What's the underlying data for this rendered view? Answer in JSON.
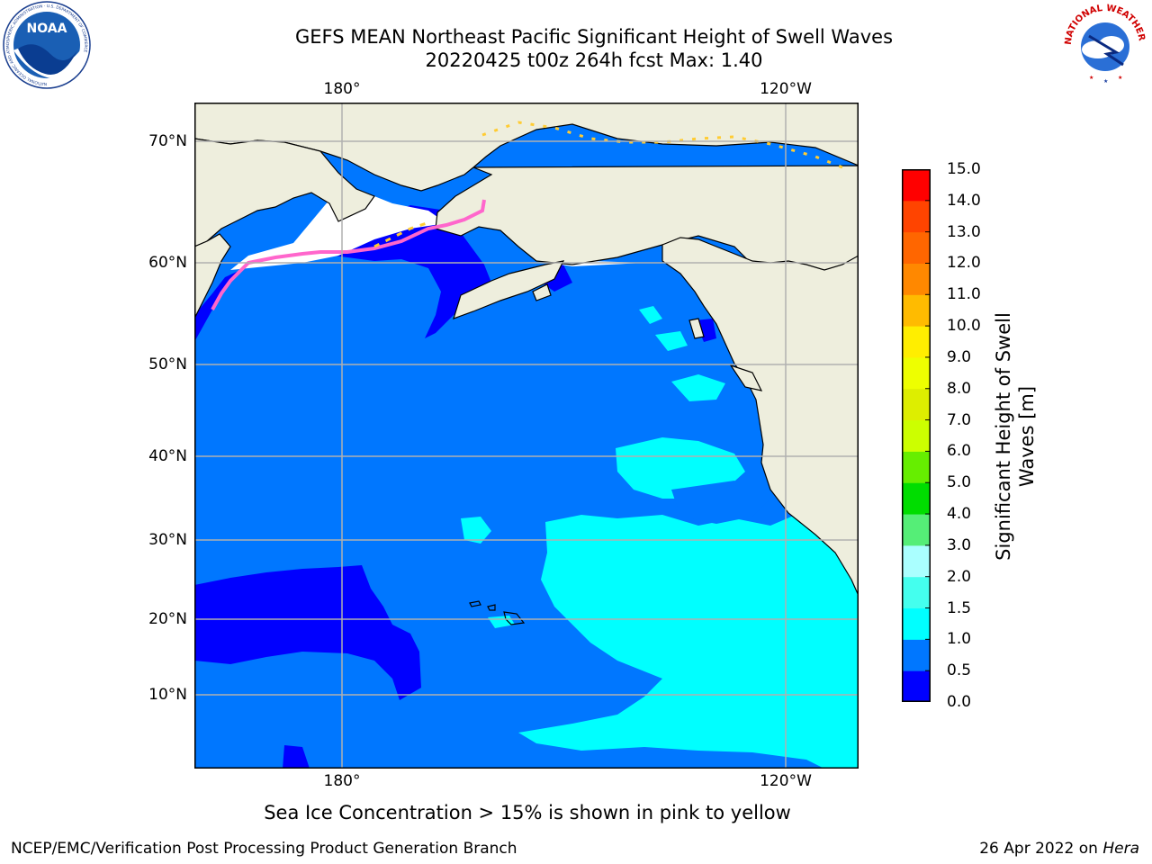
{
  "header": {
    "title_line1": "GEFS MEAN Northeast Pacific Significant Height of Swell Waves",
    "title_line2": "20220425 t00z 264h fcst   Max: 1.40"
  },
  "map": {
    "lon_labels_top": [
      "180°",
      "120°W"
    ],
    "lon_labels_bottom": [
      "180°",
      "120°W"
    ],
    "lat_labels": [
      "70°N",
      "60°N",
      "50°N",
      "40°N",
      "30°N",
      "20°N",
      "10°N"
    ],
    "colors": {
      "land": "#eeeedd",
      "ocean_0_0.5": "#0000ff",
      "ocean_0.5_1.0": "#0077ff",
      "ocean_1.0_1.5": "#00ffff",
      "sea_ice_high": "#ff66cc",
      "sea_ice_low": "#ffcc33",
      "grid": "#b0b0b0"
    }
  },
  "colorbar": {
    "label": "Significant Height of Swell Waves [m]",
    "ticks": [
      "15.0",
      "14.0",
      "13.0",
      "12.0",
      "11.0",
      "10.0",
      "9.0",
      "8.0",
      "7.0",
      "6.0",
      "5.0",
      "4.0",
      "3.0",
      "2.0",
      "1.5",
      "1.0",
      "0.5",
      "0.0"
    ],
    "bands": [
      {
        "from": 0.0,
        "to": 0.5,
        "color": "#0000ff"
      },
      {
        "from": 0.5,
        "to": 1.0,
        "color": "#0077ff"
      },
      {
        "from": 1.0,
        "to": 1.5,
        "color": "#00ffff"
      },
      {
        "from": 1.5,
        "to": 2.0,
        "color": "#44ffee"
      },
      {
        "from": 2.0,
        "to": 3.0,
        "color": "#aaffff"
      },
      {
        "from": 3.0,
        "to": 4.0,
        "color": "#55ee77"
      },
      {
        "from": 4.0,
        "to": 5.0,
        "color": "#00dd00"
      },
      {
        "from": 5.0,
        "to": 6.0,
        "color": "#66ee00"
      },
      {
        "from": 6.0,
        "to": 7.0,
        "color": "#ccff00"
      },
      {
        "from": 7.0,
        "to": 8.0,
        "color": "#ddee00"
      },
      {
        "from": 8.0,
        "to": 9.0,
        "color": "#eeff00"
      },
      {
        "from": 9.0,
        "to": 10.0,
        "color": "#ffee00"
      },
      {
        "from": 10.0,
        "to": 11.0,
        "color": "#ffbb00"
      },
      {
        "from": 11.0,
        "to": 12.0,
        "color": "#ff8800"
      },
      {
        "from": 12.0,
        "to": 13.0,
        "color": "#ff6600"
      },
      {
        "from": 13.0,
        "to": 14.0,
        "color": "#ff4400"
      },
      {
        "from": 14.0,
        "to": 15.0,
        "color": "#ff0000"
      }
    ]
  },
  "footnote": "Sea Ice Concentration > 15% is shown in pink to yellow",
  "footer": {
    "left": "NCEP/EMC/Verification Post Processing Product Generation Branch",
    "right_prefix": "26 Apr 2022 on ",
    "right_host": "Hera"
  },
  "logos": {
    "noaa_text": "NOAA",
    "noaa_ring_text": "NATIONAL OCEANIC AND ATMOSPHERIC ADMINISTRATION · U.S. DEPARTMENT OF COMMERCE",
    "nws_ring_text": "NATIONAL WEATHER SERVICE"
  }
}
